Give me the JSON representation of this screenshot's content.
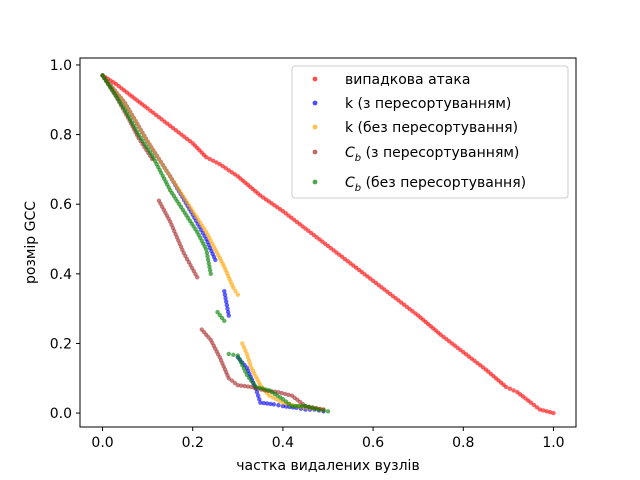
{
  "chart_data": {
    "type": "scatter",
    "title": "",
    "xlabel": "частка видалених вузлів",
    "ylabel": "розмір GCC",
    "xlim": [
      -0.05,
      1.05
    ],
    "ylim": [
      -0.04,
      1.02
    ],
    "xticks": [
      0.0,
      0.2,
      0.4,
      0.6,
      0.8,
      1.0
    ],
    "xtick_labels": [
      "0.0",
      "0.2",
      "0.4",
      "0.6",
      "0.8",
      "1.0"
    ],
    "yticks": [
      0.0,
      0.2,
      0.4,
      0.6,
      0.8,
      1.0
    ],
    "ytick_labels": [
      "0.0",
      "0.2",
      "0.4",
      "0.6",
      "0.8",
      "1.0"
    ],
    "grid": false,
    "legend_position": "top-right",
    "series": [
      {
        "name": "випадкова атака",
        "color": "#ff0000",
        "points": [
          [
            0.0,
            0.97
          ],
          [
            0.03,
            0.945
          ],
          [
            0.06,
            0.915
          ],
          [
            0.1,
            0.875
          ],
          [
            0.15,
            0.825
          ],
          [
            0.2,
            0.775
          ],
          [
            0.23,
            0.735
          ],
          [
            0.26,
            0.715
          ],
          [
            0.3,
            0.68
          ],
          [
            0.35,
            0.625
          ],
          [
            0.4,
            0.58
          ],
          [
            0.45,
            0.53
          ],
          [
            0.5,
            0.48
          ],
          [
            0.55,
            0.43
          ],
          [
            0.6,
            0.38
          ],
          [
            0.65,
            0.33
          ],
          [
            0.7,
            0.28
          ],
          [
            0.75,
            0.225
          ],
          [
            0.8,
            0.175
          ],
          [
            0.85,
            0.125
          ],
          [
            0.895,
            0.075
          ],
          [
            0.92,
            0.06
          ],
          [
            0.95,
            0.03
          ],
          [
            0.97,
            0.01
          ],
          [
            1.0,
            0.0
          ]
        ]
      },
      {
        "name": "k (з пересортуванням)",
        "color": "#0000ff",
        "points": [
          [
            0.0,
            0.97
          ],
          [
            0.05,
            0.89
          ],
          [
            0.1,
            0.78
          ],
          [
            0.15,
            0.68
          ],
          [
            0.2,
            0.57
          ],
          [
            0.23,
            0.5
          ],
          [
            0.25,
            0.44
          ],
          [
            0.27,
            0.35
          ],
          [
            0.28,
            0.28
          ],
          [
            0.3,
            0.16
          ],
          [
            0.32,
            0.13
          ],
          [
            0.34,
            0.07
          ],
          [
            0.35,
            0.03
          ],
          [
            0.38,
            0.025
          ],
          [
            0.4,
            0.02
          ],
          [
            0.43,
            0.015
          ],
          [
            0.45,
            0.01
          ],
          [
            0.47,
            0.01
          ],
          [
            0.49,
            0.005
          ]
        ]
      },
      {
        "name": "k (без пересортування)",
        "color": "#ffa500",
        "points": [
          [
            0.0,
            0.97
          ],
          [
            0.05,
            0.89
          ],
          [
            0.1,
            0.78
          ],
          [
            0.15,
            0.68
          ],
          [
            0.2,
            0.58
          ],
          [
            0.23,
            0.52
          ],
          [
            0.25,
            0.47
          ],
          [
            0.27,
            0.42
          ],
          [
            0.29,
            0.36
          ],
          [
            0.3,
            0.34
          ],
          [
            0.31,
            0.2
          ],
          [
            0.32,
            0.17
          ],
          [
            0.33,
            0.13
          ],
          [
            0.35,
            0.08
          ],
          [
            0.37,
            0.05
          ],
          [
            0.4,
            0.03
          ],
          [
            0.43,
            0.02
          ],
          [
            0.46,
            0.015
          ],
          [
            0.49,
            0.01
          ]
        ]
      },
      {
        "name": "$C_b$ (з пересортуванням)",
        "color": "#a52a2a",
        "points": [
          [
            0.0,
            0.97
          ],
          [
            0.03,
            0.91
          ],
          [
            0.06,
            0.84
          ],
          [
            0.08,
            0.79
          ],
          [
            0.11,
            0.73
          ],
          [
            0.125,
            0.61
          ],
          [
            0.15,
            0.55
          ],
          [
            0.18,
            0.46
          ],
          [
            0.21,
            0.39
          ],
          [
            0.22,
            0.24
          ],
          [
            0.24,
            0.21
          ],
          [
            0.26,
            0.16
          ],
          [
            0.28,
            0.1
          ],
          [
            0.3,
            0.08
          ],
          [
            0.33,
            0.075
          ],
          [
            0.36,
            0.065
          ],
          [
            0.39,
            0.06
          ],
          [
            0.42,
            0.05
          ],
          [
            0.45,
            0.02
          ],
          [
            0.49,
            0.01
          ]
        ]
      },
      {
        "name": "$C_b$ (без пересортування)",
        "color": "#008000",
        "points": [
          [
            0.0,
            0.97
          ],
          [
            0.02,
            0.93
          ],
          [
            0.05,
            0.87
          ],
          [
            0.08,
            0.8
          ],
          [
            0.11,
            0.74
          ],
          [
            0.13,
            0.69
          ],
          [
            0.15,
            0.64
          ],
          [
            0.17,
            0.6
          ],
          [
            0.19,
            0.56
          ],
          [
            0.21,
            0.52
          ],
          [
            0.23,
            0.47
          ],
          [
            0.24,
            0.4
          ],
          [
            0.255,
            0.29
          ],
          [
            0.27,
            0.265
          ],
          [
            0.28,
            0.17
          ],
          [
            0.3,
            0.165
          ],
          [
            0.32,
            0.11
          ],
          [
            0.34,
            0.075
          ],
          [
            0.37,
            0.065
          ],
          [
            0.4,
            0.04
          ],
          [
            0.42,
            0.02
          ],
          [
            0.45,
            0.02
          ],
          [
            0.48,
            0.01
          ],
          [
            0.5,
            0.005
          ]
        ]
      }
    ]
  },
  "legend": {
    "entries": [
      {
        "label": "випадкова атака",
        "color": "#ff0000",
        "math": false
      },
      {
        "label": "k (з пересортуванням)",
        "color": "#0000ff",
        "math": false
      },
      {
        "label": "k (без пересортування)",
        "color": "#ffa500",
        "math": false
      },
      {
        "label_prefix": "C",
        "label_sub": "b",
        "label_rest": " (з пересортуванням)",
        "color": "#a52a2a",
        "math": true
      },
      {
        "label_prefix": "C",
        "label_sub": "b",
        "label_rest": " (без пересортування)",
        "color": "#008000",
        "math": true
      }
    ]
  }
}
